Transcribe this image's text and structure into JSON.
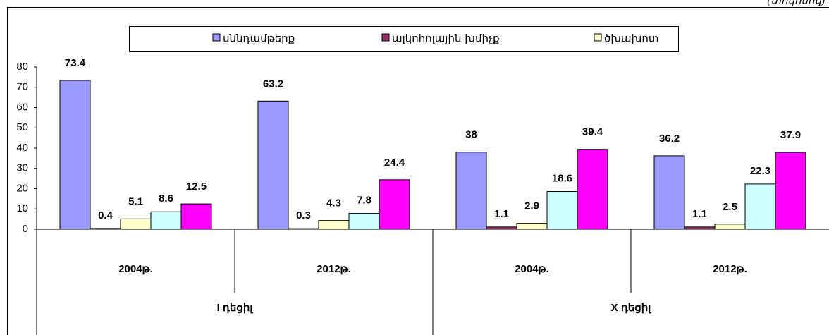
{
  "chart_data": {
    "type": "bar",
    "note_top_right": "(տոկոսով)",
    "categories": [
      "2004թ.",
      "2012թ.",
      "2004թ.",
      "2012թ."
    ],
    "groups": [
      "I դեցիլ",
      "X դեցիլ"
    ],
    "series": [
      {
        "name": "սննդամթերք",
        "color": "#9999ff",
        "values": [
          73.4,
          63.2,
          38,
          36.2
        ]
      },
      {
        "name": "ալկոհոլային խմիչք",
        "color": "#993366",
        "values": [
          0.4,
          0.3,
          1.1,
          1.1
        ]
      },
      {
        "name": "ծխախոտ",
        "color": "#ffffcc",
        "values": [
          5.1,
          4.3,
          2.9,
          2.5
        ]
      },
      {
        "color": "#ccffff",
        "values": [
          8.6,
          7.8,
          18.6,
          22.3
        ]
      },
      {
        "color": "#ff00ff",
        "values": [
          12.5,
          24.4,
          39.4,
          37.9
        ]
      }
    ],
    "ylim": [
      0,
      80
    ],
    "yticks": [
      0,
      10,
      20,
      30,
      40,
      50,
      60,
      70,
      80
    ]
  }
}
